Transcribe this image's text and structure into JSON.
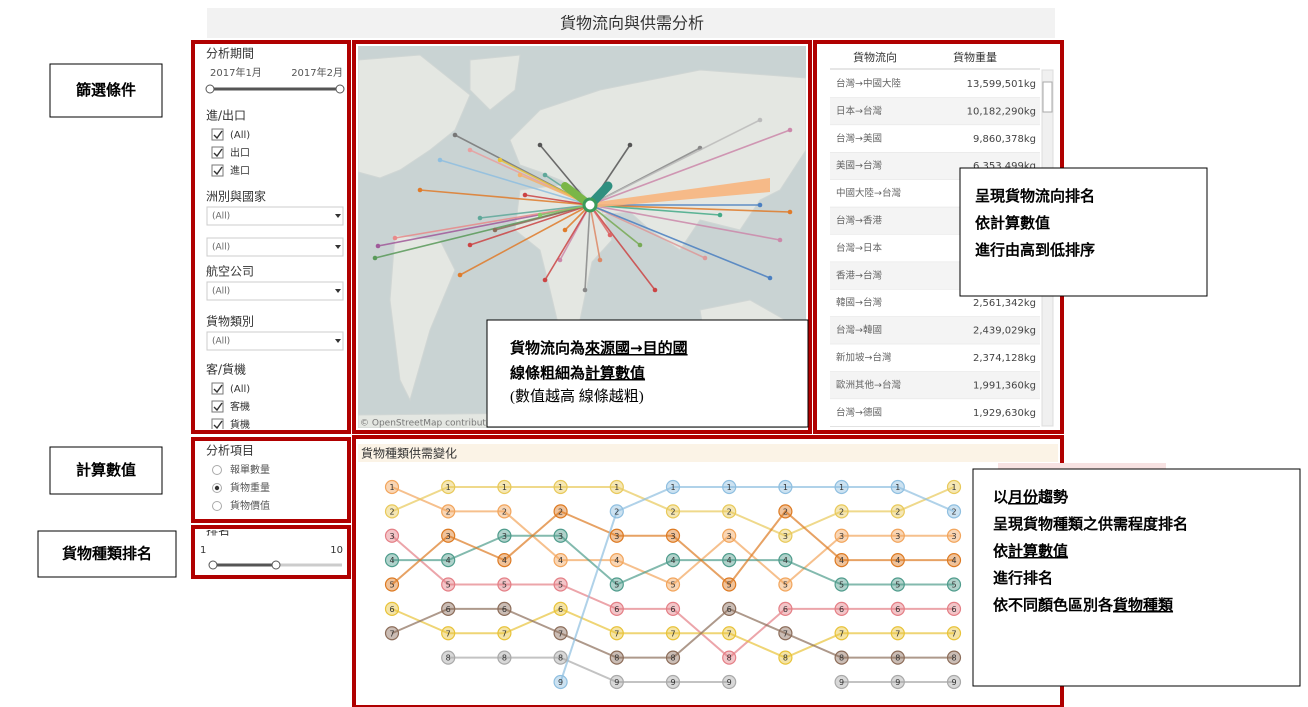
{
  "title": "貨物流向與供需分析",
  "annotations": {
    "filters": "篩選條件",
    "measure": "計算數值",
    "rank": "貨物種類排名"
  },
  "filters": {
    "period": {
      "label": "分析期間",
      "start": "2017年1月",
      "end": "2017年2月"
    },
    "import_export": {
      "label": "進/出口",
      "options": [
        "(All)",
        "出口",
        "進口"
      ]
    },
    "region": {
      "label": "洲別與國家",
      "dropdowns": [
        "(All)",
        "(All)"
      ]
    },
    "airline": {
      "label": "航空公司",
      "dropdowns": [
        "(All)"
      ]
    },
    "cargo_class": {
      "label": "貨物類別",
      "dropdowns": [
        "(All)"
      ]
    },
    "aircraft": {
      "label": "客/貨機",
      "options": [
        "(All)",
        "客機",
        "貨機"
      ]
    }
  },
  "measure": {
    "label": "分析項目",
    "options": [
      "報單數量",
      "貨物重量",
      "貨物價值"
    ],
    "selected": 1
  },
  "rank_filter": {
    "label": "排名",
    "min": 1,
    "max": 10
  },
  "map": {
    "attribution": "© OpenStreetMap contributors"
  },
  "table": {
    "columns": [
      "貨物流向",
      "貨物重量"
    ],
    "rows": [
      [
        "台灣→中國大陸",
        "13,599,501kg"
      ],
      [
        "日本→台灣",
        "10,182,290kg"
      ],
      [
        "台灣→美國",
        "9,860,378kg"
      ],
      [
        "美國→台灣",
        "6,353,499kg"
      ],
      [
        "中國大陸→台灣",
        null
      ],
      [
        "台灣→香港",
        null
      ],
      [
        "台灣→日本",
        null
      ],
      [
        "香港→台灣",
        null
      ],
      [
        "韓國→台灣",
        "2,561,342kg"
      ],
      [
        "台灣→韓國",
        "2,439,029kg"
      ],
      [
        "新加坡→台灣",
        "2,374,128kg"
      ],
      [
        "歐洲其他→台灣",
        "1,991,360kg"
      ],
      [
        "台灣→德國",
        "1,929,630kg"
      ]
    ]
  },
  "callouts": [
    {
      "lines": [
        [
          {
            "text": "貨物流向為"
          },
          {
            "text": "來源國→目的國",
            "underline": true
          }
        ],
        [
          {
            "text": "線條粗細為"
          },
          {
            "text": "計算數值",
            "underline": true
          }
        ],
        [
          {
            "text": "(數值越高  線條越粗)",
            "weight": "normal"
          }
        ]
      ]
    },
    {
      "lines": [
        [
          {
            "text": "呈現貨物流向排名"
          }
        ],
        [
          {
            "text": "依計算數值"
          }
        ],
        [
          {
            "text": "進行由高到低排序"
          }
        ]
      ]
    },
    {
      "lines": [
        [
          {
            "text": "以"
          },
          {
            "text": "月份",
            "underline": true
          },
          {
            "text": "趨勢"
          }
        ],
        [
          {
            "text": "呈現貨物種類之供需程度排名"
          }
        ],
        [
          {
            "text": "依"
          },
          {
            "text": "計算數值",
            "underline": true
          }
        ],
        [
          {
            "text": "進行排名"
          }
        ],
        [
          {
            "text": "依不同顏色區別各"
          },
          {
            "text": "貨物種類",
            "underline": true
          }
        ]
      ]
    }
  ],
  "chart_data": {
    "type": "bump",
    "title": "貨物種類供需變化",
    "categories": [
      null,
      null,
      null,
      null,
      null,
      null,
      null,
      null,
      null,
      null,
      null
    ],
    "ylim": [
      1,
      9
    ],
    "series": [
      {
        "color": "#f2a55c",
        "values": [
          1,
          2,
          2,
          4,
          4,
          5,
          3,
          5,
          3,
          3,
          3
        ]
      },
      {
        "color": "#e8c95a",
        "values": [
          2,
          1,
          1,
          1,
          1,
          2,
          2,
          3,
          2,
          2,
          1
        ]
      },
      {
        "color": "#e47f86",
        "values": [
          3,
          5,
          5,
          5,
          6,
          6,
          8,
          6,
          6,
          6,
          6
        ]
      },
      {
        "color": "#4f9c8c",
        "values": [
          4,
          4,
          3,
          3,
          5,
          4,
          4,
          4,
          5,
          5,
          5
        ]
      },
      {
        "color": "#dd7a22",
        "values": [
          5,
          3,
          4,
          2,
          3,
          3,
          5,
          2,
          4,
          4,
          4
        ]
      },
      {
        "color": "#e8c33a",
        "values": [
          6,
          7,
          7,
          6,
          7,
          7,
          7,
          8,
          7,
          7,
          7
        ]
      },
      {
        "color": "#8c6d5a",
        "values": [
          7,
          6,
          6,
          7,
          8,
          8,
          6,
          7,
          8,
          8,
          8
        ]
      },
      {
        "color": "#a9a9a9",
        "values": [
          null,
          8,
          8,
          8,
          9,
          9,
          9,
          null,
          9,
          9,
          9
        ]
      },
      {
        "color": "#8fbfe0",
        "values": [
          null,
          null,
          null,
          9,
          2,
          1,
          1,
          1,
          1,
          1,
          2
        ]
      }
    ]
  }
}
